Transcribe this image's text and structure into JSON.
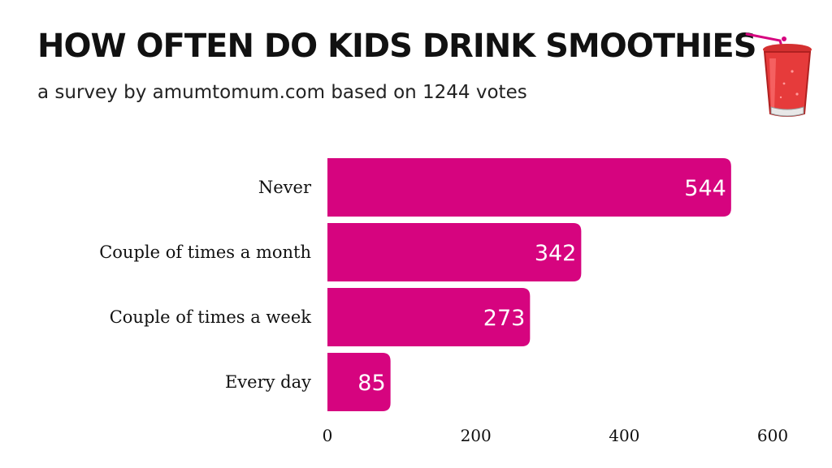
{
  "header": {
    "title": "HOW OFTEN DO KIDS DRINK SMOOTHIES",
    "subtitle": "a survey by amumtomum.com based on 1244 votes"
  },
  "icons": {
    "cup": "smoothie-cup-icon"
  },
  "colors": {
    "bar": "#d6047f",
    "cup_red": "#e63b3b",
    "straw": "#d6047f"
  },
  "chart_data": {
    "type": "bar",
    "orientation": "horizontal",
    "categories": [
      "Never",
      "Couple of times a month",
      "Couple of times a week",
      "Every day"
    ],
    "values": [
      544,
      342,
      273,
      85
    ],
    "value_labels": [
      "544",
      "342",
      "273",
      "85"
    ],
    "title": "HOW OFTEN DO KIDS DRINK SMOOTHIES",
    "subtitle": "a survey by amumtomum.com based on 1244 votes",
    "xlim": [
      0,
      600
    ],
    "xticks": [
      0,
      200,
      400,
      600
    ],
    "xtick_labels": [
      "0",
      "200",
      "400",
      "600"
    ],
    "grid": false,
    "legend": "none"
  }
}
